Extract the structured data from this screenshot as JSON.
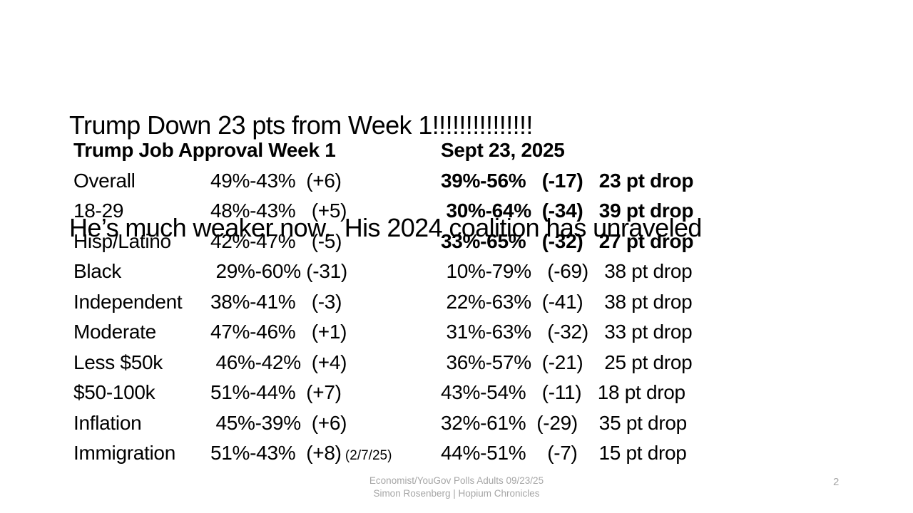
{
  "slide": {
    "title_line1": "Trump Down 23 pts from Week 1!!!!!!!!!!!!!!!",
    "title_line2": "He’s much weaker now.  His 2024 coalition has unraveled",
    "page_number": "2",
    "colors": {
      "text": "#000000",
      "muted": "#a6a6a6",
      "background": "#ffffff"
    }
  },
  "table": {
    "header_left": "Trump Job Approval Week 1",
    "header_right": "Sept 23, 2025",
    "rows": [
      {
        "label": "Overall",
        "week1": "49%-43%  (+6)",
        "note": "",
        "sept": "39%-56%   (-17)   23 pt drop",
        "bold": true
      },
      {
        "label": "18-29",
        "week1": "48%-43%   (+5)",
        "note": "",
        "sept": " 30%-64%  (-34)   39 pt drop",
        "bold": true
      },
      {
        "label": "Hisp/Latino",
        "week1": "42%-47%   (-5)",
        "note": "",
        "sept": "33%-65%   (-32)   27 pt drop",
        "bold": true
      },
      {
        "label": "Black",
        "week1": " 29%-60% (-31)",
        "note": "",
        "sept": " 10%-79%   (-69)   38 pt drop",
        "bold": false
      },
      {
        "label": "Independent",
        "week1": "38%-41%   (-3)",
        "note": "",
        "sept": " 22%-63%  (-41)    38 pt drop",
        "bold": false
      },
      {
        "label": "Moderate",
        "week1": "47%-46%   (+1)",
        "note": "",
        "sept": " 31%-63%   (-32)   33 pt drop",
        "bold": false
      },
      {
        "label": "Less $50k",
        "week1": " 46%-42%  (+4)",
        "note": "",
        "sept": " 36%-57%  (-21)    25 pt drop",
        "bold": false
      },
      {
        "label": "$50-100k",
        "week1": "51%-44%  (+7)",
        "note": "",
        "sept": "43%-54%   (-11)   18 pt drop",
        "bold": false
      },
      {
        "label": "Inflation",
        "week1": " 45%-39%  (+6)",
        "note": "",
        "sept": "32%-61%  (-29)    35 pt drop",
        "bold": false
      },
      {
        "label": "Immigration",
        "week1": "51%-43%  (+8)",
        "note": " (2/7/25)",
        "sept": "44%-51%    (-7)    15 pt drop",
        "bold": false
      }
    ]
  },
  "footer": {
    "source_line": "Economist/YouGov Polls Adults 09/23/25",
    "author_line": "Simon Rosenberg | Hopium Chronicles"
  }
}
